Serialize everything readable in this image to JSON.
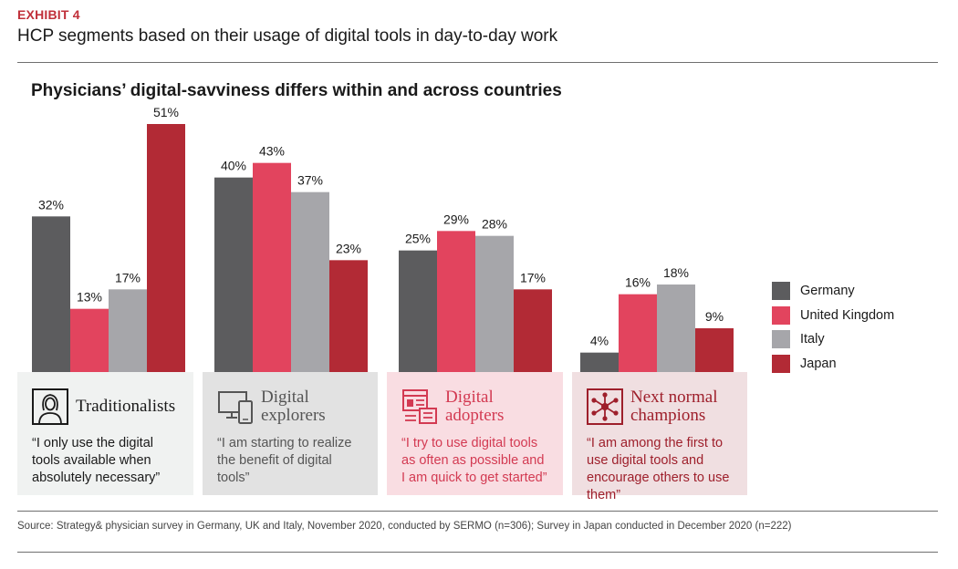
{
  "header": {
    "exhibit": "EXHIBIT 4",
    "subtitle": "HCP segments based on their usage of digital tools in day-to-day work"
  },
  "colors": {
    "accent": "#c0303a",
    "Germany": "#5c5c5e",
    "United Kingdom": "#e2445e",
    "Italy": "#a6a6aa",
    "Japan": "#b22a35"
  },
  "chart_data": {
    "type": "bar",
    "title": "Physicians’ digital-savviness differs within and across countries",
    "categories": [
      "Traditionalists",
      "Digital explorers",
      "Digital adopters",
      "Next normal champions"
    ],
    "series": [
      {
        "name": "Germany",
        "values": [
          32,
          40,
          25,
          4
        ]
      },
      {
        "name": "United Kingdom",
        "values": [
          13,
          43,
          29,
          16
        ]
      },
      {
        "name": "Italy",
        "values": [
          17,
          37,
          28,
          18
        ]
      },
      {
        "name": "Japan",
        "values": [
          51,
          23,
          17,
          9
        ]
      }
    ],
    "value_suffix": "%",
    "ylim": [
      0,
      52
    ],
    "legend_position": "right",
    "grid": false
  },
  "segments": [
    {
      "name": "Traditionalists",
      "icon": "person-icon",
      "quote": "“I only use the digital tools available when absolutely necessary”",
      "bg": "#f0f2f1",
      "text_color": "#1a1a1a"
    },
    {
      "name": "Digital explorers",
      "icon": "devices-icon",
      "quote": "“I am starting to realize the benefit of digital tools”",
      "bg": "#e2e2e2",
      "text_color": "#555555"
    },
    {
      "name": "Digital adopters",
      "icon": "apps-icon",
      "quote": "“I try to use digital tools as often as possible and I am quick to get started”",
      "bg": "#f9dde2",
      "text_color": "#d33a52"
    },
    {
      "name": "Next normal champions",
      "icon": "network-icon",
      "quote": "“I am among the first to use digital tools and encourage others to use them”",
      "bg": "#f0dfe1",
      "text_color": "#9e1f2b"
    }
  ],
  "source": "Source: Strategy& physician survey in Germany, UK and Italy, November 2020, conducted by SERMO (n=306); Survey in Japan conducted in December 2020 (n=222)"
}
